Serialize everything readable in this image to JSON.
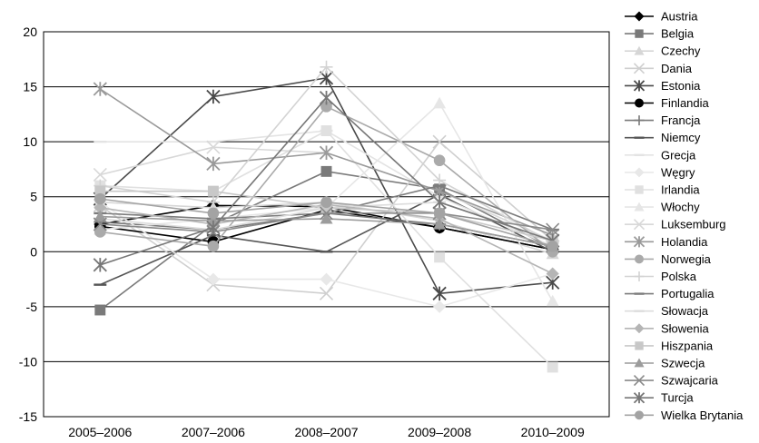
{
  "chart_data": {
    "type": "line",
    "categories": [
      "2005–2006",
      "2007–2006",
      "2008–2007",
      "2009–2008",
      "2010–2009"
    ],
    "ylim": [
      -15,
      20
    ],
    "yticks": [
      20,
      15,
      10,
      5,
      0,
      -5,
      -10,
      -15
    ],
    "ytick_labels": [
      "20",
      "15",
      "10",
      "5",
      "0",
      "-5",
      "-10",
      "-15"
    ],
    "grid": "horizontal",
    "legend": "right",
    "series": [
      {
        "name": "Austria",
        "color": "#000000",
        "marker": "diamond",
        "values": [
          2.5,
          4.2,
          4.1,
          2.2,
          0.2
        ]
      },
      {
        "name": "Belgia",
        "color": "#7a7a7a",
        "marker": "square",
        "values": [
          -5.3,
          2.5,
          7.3,
          5.7,
          0.3
        ]
      },
      {
        "name": "Czechy",
        "color": "#d6d6d6",
        "marker": "triangle",
        "values": [
          4.5,
          4.0,
          4.5,
          2.8,
          -0.2
        ]
      },
      {
        "name": "Dania",
        "color": "#cfcfcf",
        "marker": "x",
        "values": [
          4.2,
          -3.0,
          -3.8,
          10.0,
          1.0
        ]
      },
      {
        "name": "Estonia",
        "color": "#4a4a4a",
        "marker": "asterisk",
        "values": [
          4.8,
          14.1,
          15.8,
          -3.8,
          -2.8
        ]
      },
      {
        "name": "Finlandia",
        "color": "#000000",
        "marker": "circle",
        "values": [
          2.3,
          0.9,
          3.8,
          2.2,
          0.2
        ]
      },
      {
        "name": "Francja",
        "color": "#7a7a7a",
        "marker": "plus",
        "values": [
          2.7,
          2.0,
          3.5,
          2.5,
          0.5
        ]
      },
      {
        "name": "Niemcy",
        "color": "#555555",
        "marker": "dash",
        "values": [
          -3.0,
          1.5,
          0.0,
          5.2,
          0.0
        ]
      },
      {
        "name": "Grecja",
        "color": "#e3e3e3",
        "marker": "dash",
        "values": [
          10.0,
          10.0,
          11.0,
          5.0,
          0.5
        ]
      },
      {
        "name": "Węgry",
        "color": "#e8e8e8",
        "marker": "diamond",
        "values": [
          4.5,
          -2.5,
          -2.5,
          -5.0,
          -2.0
        ]
      },
      {
        "name": "Irlandia",
        "color": "#e0e0e0",
        "marker": "square",
        "values": [
          6.0,
          5.5,
          11.0,
          -0.5,
          -10.5
        ]
      },
      {
        "name": "Włochy",
        "color": "#e6e6e6",
        "marker": "triangle",
        "values": [
          2.0,
          3.0,
          4.0,
          13.5,
          -4.5
        ]
      },
      {
        "name": "Luksemburg",
        "color": "#d8d8d8",
        "marker": "x",
        "values": [
          7.0,
          9.5,
          9.0,
          5.5,
          1.0
        ]
      },
      {
        "name": "Holandia",
        "color": "#9a9a9a",
        "marker": "asterisk",
        "values": [
          14.8,
          8.0,
          9.0,
          5.5,
          1.5
        ]
      },
      {
        "name": "Norwegia",
        "color": "#aaaaaa",
        "marker": "circle",
        "values": [
          1.8,
          0.5,
          13.2,
          8.3,
          0.0
        ]
      },
      {
        "name": "Polska",
        "color": "#d3d3d3",
        "marker": "plus",
        "values": [
          6.0,
          4.5,
          16.8,
          6.5,
          0.8
        ]
      },
      {
        "name": "Portugalia",
        "color": "#7c7c7c",
        "marker": "dash",
        "values": [
          3.5,
          3.0,
          3.5,
          6.0,
          2.0
        ]
      },
      {
        "name": "Słowacja",
        "color": "#dcdcdc",
        "marker": "dash",
        "values": [
          3.0,
          2.0,
          4.0,
          4.5,
          1.0
        ]
      },
      {
        "name": "Słowenia",
        "color": "#b5b5b5",
        "marker": "diamond",
        "values": [
          4.0,
          2.5,
          4.3,
          3.0,
          -2.0
        ]
      },
      {
        "name": "Hiszpania",
        "color": "#c8c8c8",
        "marker": "square",
        "values": [
          5.5,
          5.5,
          4.0,
          3.5,
          1.0
        ]
      },
      {
        "name": "Szwecja",
        "color": "#9c9c9c",
        "marker": "triangle",
        "values": [
          3.2,
          2.8,
          3.0,
          2.5,
          0.5
        ]
      },
      {
        "name": "Szwajcaria",
        "color": "#8a8a8a",
        "marker": "x",
        "values": [
          2.5,
          1.8,
          3.5,
          3.5,
          2.0
        ]
      },
      {
        "name": "Turcja",
        "color": "#777777",
        "marker": "asterisk",
        "values": [
          -1.2,
          2.2,
          14.0,
          4.5,
          1.0
        ]
      },
      {
        "name": "Wielka Brytania",
        "color": "#a3a3a3",
        "marker": "circle",
        "values": [
          4.8,
          3.5,
          4.5,
          3.5,
          0.5
        ]
      }
    ]
  }
}
